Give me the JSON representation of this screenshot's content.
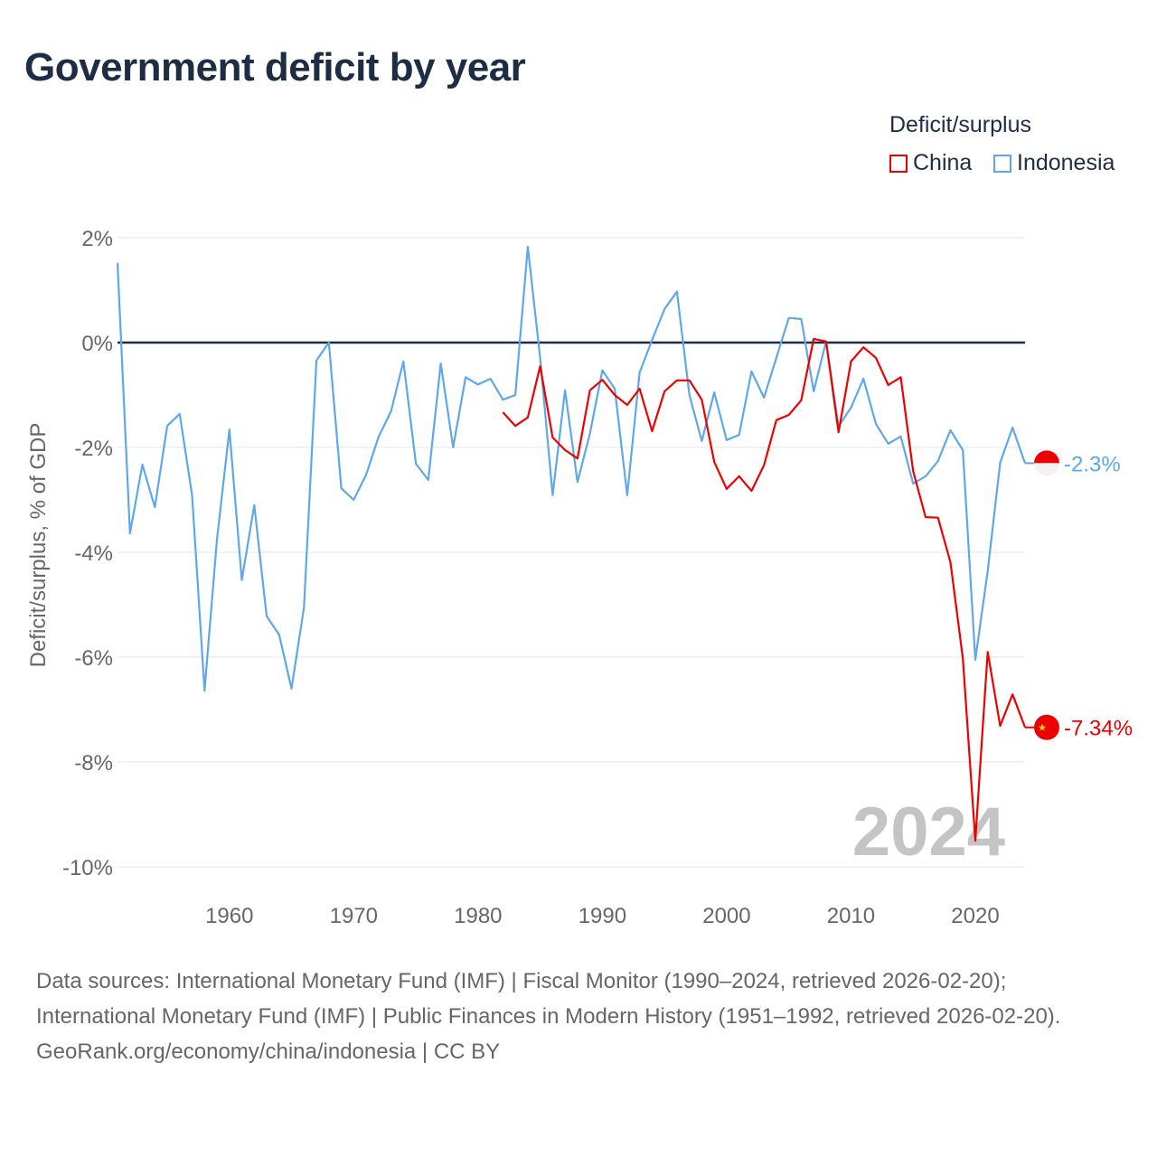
{
  "title": "Government deficit by year",
  "legend": {
    "title": "Deficit/surplus",
    "items": [
      {
        "name": "China",
        "color": "#ee0000"
      },
      {
        "name": "Indonesia",
        "color": "#5ea8ea"
      }
    ]
  },
  "footer": {
    "sources": "Data sources: International Monetary Fund (IMF) | Fiscal Monitor (1990–2024, retrieved 2026-02-20); International Monetary Fund (IMF) | Public Finances in Modern History (1951–1992, retrieved 2026-02-20).",
    "credit": "GeoRank.org/economy/china/indonesia | CC BY"
  },
  "chart_data": {
    "type": "line",
    "title": "Government deficit by year",
    "ylabel": "Deficit/surplus, % of GDP",
    "xlabel": "",
    "xlim": [
      1951,
      2024
    ],
    "ylim": [
      -10,
      2
    ],
    "yticks": [
      2,
      0,
      -2,
      -4,
      -6,
      -8,
      -10
    ],
    "ytick_labels": [
      "2%",
      "0%",
      "-2%",
      "-4%",
      "-6%",
      "-8%",
      "-10%"
    ],
    "xticks": [
      1960,
      1970,
      1980,
      1990,
      2000,
      2010,
      2020
    ],
    "xtick_labels": [
      "1960",
      "1970",
      "1980",
      "1990",
      "2000",
      "2010",
      "2020"
    ],
    "grid": true,
    "legend_position": "top-right",
    "year_watermark": "2024",
    "series": [
      {
        "name": "Indonesia",
        "color": "#5ea8ea",
        "end_label": "-2.3%",
        "start_year": 1951,
        "values": [
          1.52,
          -3.64,
          -2.33,
          -3.14,
          -1.59,
          -1.36,
          -2.91,
          -6.64,
          -3.76,
          -1.66,
          -4.53,
          -3.1,
          -5.22,
          -5.57,
          -6.6,
          -5.05,
          -0.34,
          0,
          -2.78,
          -3.0,
          -2.52,
          -1.8,
          -1.31,
          -0.36,
          -2.31,
          -2.62,
          -0.4,
          -2.0,
          -0.66,
          -0.8,
          -0.69,
          -1.09,
          -1.0,
          1.83,
          -0.3,
          -2.91,
          -0.91,
          -2.66,
          -1.74,
          -0.53,
          -0.88,
          -2.91,
          -0.57,
          0.05,
          0.64,
          0.97,
          -1.0,
          -1.88,
          -0.95,
          -1.86,
          -1.76,
          -0.55,
          -1.05,
          -0.29,
          0.47,
          0.45,
          -0.93,
          0.02,
          -1.6,
          -1.24,
          -0.69,
          -1.55,
          -1.93,
          -1.79,
          -2.69,
          -2.55,
          -2.26,
          -1.67,
          -2.05,
          -6.05,
          -4.36,
          -2.29,
          -1.62,
          -2.3
        ]
      },
      {
        "name": "China",
        "color": "#ee0000",
        "end_label": "-7.34%",
        "start_year": 1982,
        "values": [
          -1.33,
          -1.59,
          -1.43,
          -0.45,
          -1.81,
          -2.05,
          -2.21,
          -0.91,
          -0.71,
          -1.0,
          -1.19,
          -0.88,
          -1.69,
          -0.93,
          -0.72,
          -0.72,
          -1.09,
          -2.28,
          -2.79,
          -2.55,
          -2.83,
          -2.34,
          -1.48,
          -1.38,
          -1.1,
          0.07,
          0.02,
          -1.71,
          -0.36,
          -0.09,
          -0.29,
          -0.81,
          -0.66,
          -2.45,
          -3.33,
          -3.34,
          -4.19,
          -6.02,
          -9.5,
          -5.9,
          -7.31,
          -6.71,
          -7.34
        ]
      }
    ]
  }
}
